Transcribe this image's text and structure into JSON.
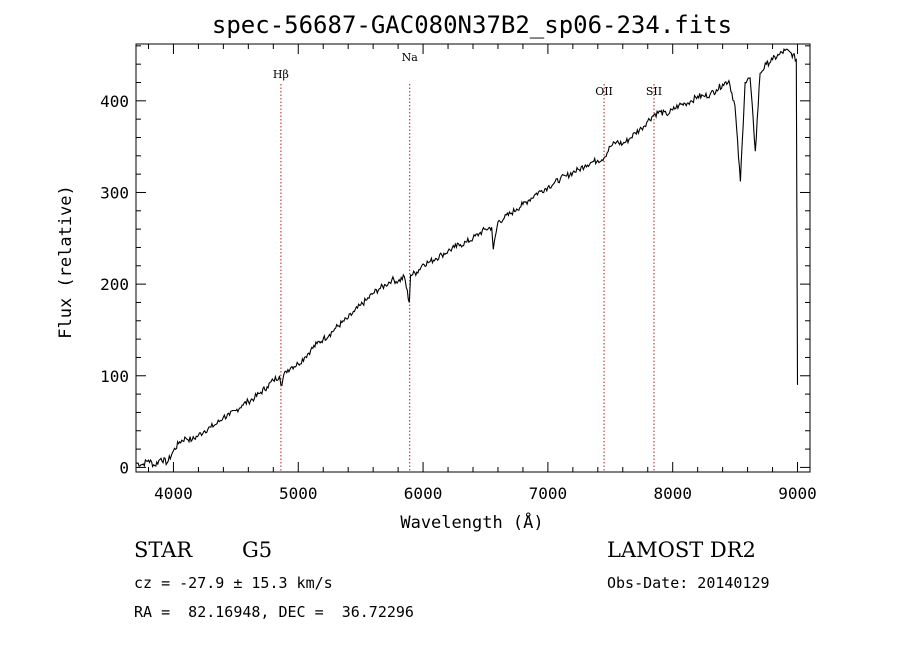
{
  "chart_data": {
    "type": "line",
    "title": "spec-56687-GAC080N37B2_sp06-234.fits",
    "xlabel": "Wavelength (Å)",
    "ylabel": "Flux (relative)",
    "xlim": [
      3700,
      9100
    ],
    "ylim": [
      -5,
      462
    ],
    "xticks": [
      4000,
      5000,
      6000,
      7000,
      8000,
      9000
    ],
    "yticks": [
      0,
      100,
      200,
      300,
      400
    ],
    "xtick_labels": [
      "4000",
      "5000",
      "6000",
      "7000",
      "8000",
      "9000"
    ],
    "ytick_labels": [
      "0",
      "100",
      "200",
      "300",
      "400"
    ],
    "series": [
      {
        "name": "spectrum",
        "x": [
          3700,
          3750,
          3800,
          3850,
          3900,
          3950,
          4000,
          4050,
          4100,
          4150,
          4200,
          4250,
          4300,
          4350,
          4400,
          4450,
          4500,
          4550,
          4600,
          4650,
          4700,
          4750,
          4800,
          4850,
          4861,
          4900,
          4950,
          5000,
          5050,
          5100,
          5150,
          5200,
          5250,
          5300,
          5350,
          5400,
          5450,
          5500,
          5550,
          5600,
          5650,
          5700,
          5750,
          5800,
          5850,
          5890,
          5900,
          5950,
          6000,
          6050,
          6100,
          6150,
          6200,
          6250,
          6300,
          6350,
          6400,
          6450,
          6500,
          6550,
          6563,
          6600,
          6650,
          6700,
          6750,
          6800,
          6850,
          6900,
          6950,
          7000,
          7050,
          7100,
          7150,
          7200,
          7250,
          7300,
          7350,
          7400,
          7450,
          7500,
          7550,
          7600,
          7650,
          7700,
          7750,
          7800,
          7850,
          7900,
          7950,
          8000,
          8050,
          8100,
          8150,
          8200,
          8250,
          8300,
          8350,
          8400,
          8450,
          8498,
          8542,
          8580,
          8620,
          8662,
          8700,
          8750,
          8800,
          8850,
          8900,
          8950,
          8990,
          9000
        ],
        "y": [
          5,
          3,
          8,
          2,
          10,
          5,
          18,
          28,
          32,
          30,
          35,
          40,
          44,
          48,
          55,
          57,
          62,
          68,
          72,
          76,
          82,
          88,
          95,
          100,
          90,
          105,
          110,
          113,
          120,
          128,
          135,
          140,
          145,
          152,
          158,
          163,
          170,
          177,
          183,
          190,
          195,
          199,
          205,
          203,
          208,
          180,
          210,
          213,
          222,
          224,
          228,
          232,
          236,
          240,
          243,
          246,
          250,
          255,
          260,
          262,
          238,
          268,
          272,
          277,
          282,
          287,
          292,
          298,
          302,
          306,
          310,
          315,
          318,
          322,
          325,
          330,
          333,
          335,
          338,
          350,
          355,
          353,
          358,
          365,
          370,
          378,
          385,
          388,
          385,
          390,
          395,
          397,
          400,
          405,
          405,
          407,
          412,
          418,
          422,
          395,
          312,
          420,
          425,
          345,
          430,
          440,
          445,
          450,
          455,
          452,
          445,
          90
        ]
      }
    ],
    "line_markers": [
      {
        "label": "Hβ",
        "x": 4861
      },
      {
        "label": "Na",
        "x": 5893
      },
      {
        "label": "OII",
        "x": 7450
      },
      {
        "label": "SII",
        "x": 7850
      }
    ]
  },
  "info": {
    "object_class": "STAR",
    "subclass": "G5",
    "survey": "LAMOST DR2",
    "cz_line": "cz = -27.9 ± 15.3 km/s",
    "obs_date_line": "Obs-Date: 20140129",
    "radec_line": "RA =  82.16948, DEC =  36.72296"
  },
  "colors": {
    "spectrum": "#000000",
    "marker": "#b22222",
    "axes": "#000000"
  }
}
